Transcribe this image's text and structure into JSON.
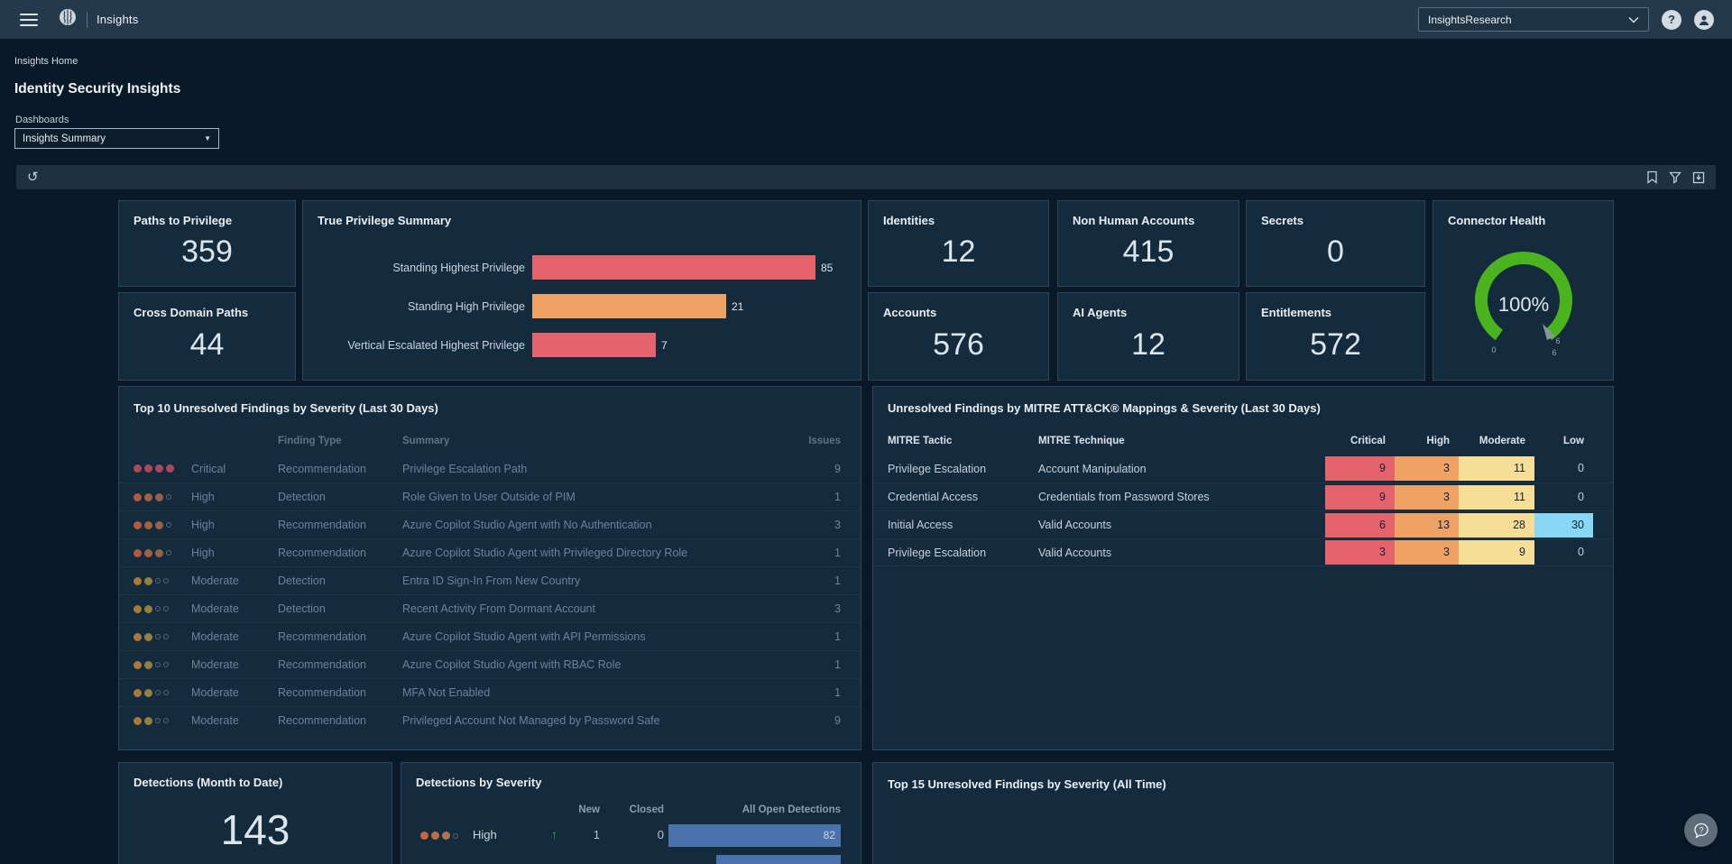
{
  "topbar": {
    "app_title": "Insights",
    "tenant_selector": "InsightsResearch"
  },
  "breadcrumb": "Insights Home",
  "page_title": "Identity Security Insights",
  "dashboards": {
    "label": "Dashboards",
    "selected": "Insights Summary"
  },
  "metrics": {
    "paths": {
      "title": "Paths to Privilege",
      "value": "359"
    },
    "cross": {
      "title": "Cross Domain Paths",
      "value": "44"
    },
    "identities": {
      "title": "Identities",
      "value": "12"
    },
    "non_human": {
      "title": "Non Human Accounts",
      "value": "415"
    },
    "secrets": {
      "title": "Secrets",
      "value": "0"
    },
    "accounts": {
      "title": "Accounts",
      "value": "576"
    },
    "ai_agents": {
      "title": "AI Agents",
      "value": "12"
    },
    "entitlements": {
      "title": "Entitlements",
      "value": "572"
    }
  },
  "true_privilege_summary": {
    "title": "True Privilege Summary",
    "chart": {
      "type": "bar",
      "orientation": "horizontal",
      "scale": "log10",
      "categories": [
        "Standing Highest Privilege",
        "Standing High Privilege",
        "Vertical Escalated Highest Privilege"
      ],
      "values": [
        85,
        21,
        7
      ],
      "bar_colors": [
        "#e5646c",
        "#efa266",
        "#e5646c"
      ]
    }
  },
  "connector_health": {
    "title": "Connector Health",
    "value": "100%",
    "gauge_min": "0",
    "gauge_max": "6",
    "needle_label": "6",
    "arc_color": "#4ab31e"
  },
  "top10": {
    "title": "Top 10 Unresolved Findings by Severity (Last 30 Days)",
    "columns": {
      "finding_type": "Finding Type",
      "summary": "Summary",
      "issues": "Issues"
    },
    "rows": [
      {
        "severity": "Critical",
        "level": 4,
        "finding_type": "Recommendation",
        "summary": "Privilege Escalation Path",
        "issues": "9"
      },
      {
        "severity": "High",
        "level": 3,
        "finding_type": "Detection",
        "summary": "Role Given to User Outside of PIM",
        "issues": "1"
      },
      {
        "severity": "High",
        "level": 3,
        "finding_type": "Recommendation",
        "summary": "Azure Copilot Studio Agent with No Authentication",
        "issues": "3"
      },
      {
        "severity": "High",
        "level": 3,
        "finding_type": "Recommendation",
        "summary": "Azure Copilot Studio Agent with Privileged Directory Role",
        "issues": "1"
      },
      {
        "severity": "Moderate",
        "level": 2,
        "finding_type": "Detection",
        "summary": "Entra ID Sign-In From New Country",
        "issues": "1"
      },
      {
        "severity": "Moderate",
        "level": 2,
        "finding_type": "Detection",
        "summary": "Recent Activity From Dormant Account",
        "issues": "3"
      },
      {
        "severity": "Moderate",
        "level": 2,
        "finding_type": "Recommendation",
        "summary": "Azure Copilot Studio Agent with API Permissions",
        "issues": "1"
      },
      {
        "severity": "Moderate",
        "level": 2,
        "finding_type": "Recommendation",
        "summary": "Azure Copilot Studio Agent with RBAC Role",
        "issues": "1"
      },
      {
        "severity": "Moderate",
        "level": 2,
        "finding_type": "Recommendation",
        "summary": "MFA Not Enabled",
        "issues": "1"
      },
      {
        "severity": "Moderate",
        "level": 2,
        "finding_type": "Recommendation",
        "summary": "Privileged Account Not Managed by Password Safe",
        "issues": "9"
      }
    ]
  },
  "mitre": {
    "title": "Unresolved Findings by MITRE ATT&CK® Mappings & Severity (Last 30 Days)",
    "columns": {
      "tactic": "MITRE Tactic",
      "technique": "MITRE Technique",
      "critical": "Critical",
      "high": "High",
      "moderate": "Moderate",
      "low": "Low"
    },
    "rows": [
      {
        "tactic": "Privilege Escalation",
        "technique": "Account Manipulation",
        "critical": 9,
        "high": 3,
        "moderate": 11,
        "low": 0
      },
      {
        "tactic": "Credential Access",
        "technique": "Credentials from Password Stores",
        "critical": 9,
        "high": 3,
        "moderate": 11,
        "low": 0
      },
      {
        "tactic": "Initial Access",
        "technique": "Valid Accounts",
        "critical": 6,
        "high": 13,
        "moderate": 28,
        "low": 30
      },
      {
        "tactic": "Privilege Escalation",
        "technique": "Valid Accounts",
        "critical": 3,
        "high": 3,
        "moderate": 9,
        "low": 0
      }
    ]
  },
  "detections_mtd": {
    "title": "Detections (Month to Date)",
    "value": "143"
  },
  "detections_by_severity": {
    "title": "Detections by Severity",
    "columns": {
      "new": "New",
      "closed": "Closed",
      "open": "All Open Detections"
    },
    "rows": [
      {
        "severity": "High",
        "level": 3,
        "trend": "up",
        "new": "1",
        "closed": "0",
        "open": 82
      }
    ],
    "partial_next_row_bar_pct": 72
  },
  "top15": {
    "title": "Top 15 Unresolved Findings by Severity (All Time)"
  },
  "colors": {
    "severity_cells": {
      "critical": "#e5646c",
      "high": "#efa266",
      "moderate": "#f6de96",
      "low": "#87d7f5"
    },
    "cell_text_dark": "#122233",
    "cell_text_zero": "#c5d1db",
    "detection_bar": "#4a73ae",
    "gauge_green": "#4ab31e",
    "trend_up_green": "#3fae4a",
    "dots": {
      "critical": [
        "#a84a5c",
        "#a84a5c",
        "#a84a5c",
        "#a84a5c"
      ],
      "high": [
        "#b25a41",
        "#a65f47",
        "#985f4b"
      ],
      "moderate": [
        "#a87a35",
        "#93803f"
      ],
      "high_bright": [
        "#c8653c",
        "#bd6c47",
        "#b07350"
      ],
      "empty_border": "#546678"
    }
  }
}
